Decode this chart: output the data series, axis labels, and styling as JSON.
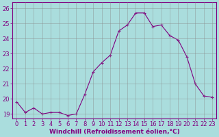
{
  "x": [
    0,
    1,
    2,
    3,
    4,
    5,
    6,
    7,
    8,
    9,
    10,
    11,
    12,
    13,
    14,
    15,
    16,
    17,
    18,
    19,
    20,
    21,
    22,
    23
  ],
  "y": [
    19.8,
    19.1,
    19.4,
    19.0,
    19.1,
    19.1,
    18.9,
    19.0,
    20.3,
    21.8,
    22.4,
    22.9,
    24.5,
    24.9,
    25.7,
    25.7,
    24.8,
    24.9,
    24.2,
    23.9,
    22.8,
    21.0,
    20.2,
    20.1
  ],
  "line_color": "#800080",
  "marker": "+",
  "marker_size": 3,
  "bg_color": "#aadddd",
  "plot_bg_color": "#aadddd",
  "grid_color": "#888888",
  "xlabel": "Windchill (Refroidissement éolien,°C)",
  "ylabel_ticks": [
    19,
    20,
    21,
    22,
    23,
    24,
    25,
    26
  ],
  "xlim": [
    -0.5,
    23.5
  ],
  "ylim": [
    18.7,
    26.4
  ],
  "xtick_labels": [
    "0",
    "1",
    "2",
    "3",
    "4",
    "5",
    "6",
    "7",
    "8",
    "9",
    "10",
    "11",
    "12",
    "13",
    "14",
    "15",
    "16",
    "17",
    "18",
    "19",
    "20",
    "21",
    "22",
    "23"
  ],
  "axis_label_fontsize": 6.5,
  "tick_fontsize": 6.0,
  "xlabel_color": "#800080",
  "border_color": "#800080"
}
